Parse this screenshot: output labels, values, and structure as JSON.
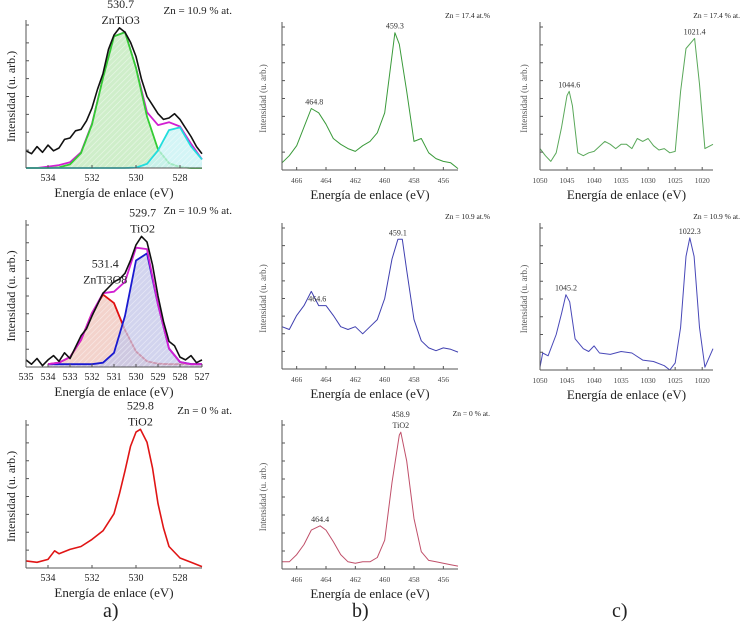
{
  "figure": {
    "panel_letters": [
      "a)",
      "b)",
      "c)"
    ]
  },
  "chart_data": [
    {
      "id": "a1",
      "type": "line",
      "column": "a",
      "annotation": "Zn = 10.9 % at.",
      "xlabel": "Energía de enlace (eV)",
      "ylabel": "Intensidad (u. arb.)",
      "xlim": [
        535,
        527
      ],
      "ylim": [
        0,
        1
      ],
      "xticks": [
        534,
        532,
        530,
        528
      ],
      "grid": false,
      "peak_labels": [
        {
          "lines": [
            "530.7",
            "ZnTiO3"
          ],
          "x": 530.7
        }
      ],
      "series": [
        {
          "role": "envelope",
          "color": "#d21fd2",
          "x": [
            535,
            534.5,
            534,
            533.5,
            533,
            532.5,
            532,
            531.5,
            531,
            530.5,
            530,
            529.5,
            529,
            528.5,
            528,
            527.5,
            527
          ],
          "y": [
            0,
            0,
            0.01,
            0.02,
            0.04,
            0.11,
            0.31,
            0.63,
            0.92,
            0.95,
            0.7,
            0.39,
            0.3,
            0.32,
            0.29,
            0.17,
            0.06
          ]
        },
        {
          "role": "component",
          "name": "ZnTiO3",
          "color": "#33cc33",
          "fill": "#bfe8b8",
          "x": [
            535,
            534.5,
            534,
            533.5,
            533,
            532.5,
            532,
            531.5,
            531,
            530.5,
            530,
            529.5,
            529,
            528.5,
            528,
            527.5,
            527
          ],
          "y": [
            0,
            0,
            0,
            0.004,
            0.025,
            0.104,
            0.305,
            0.63,
            0.92,
            0.95,
            0.7,
            0.36,
            0.13,
            0.034,
            0.006,
            0,
            0
          ]
        },
        {
          "role": "component",
          "color": "#22dddd",
          "fill": "#c6f1f3",
          "x": [
            535,
            534.5,
            534,
            533.5,
            533,
            532.5,
            532,
            531.5,
            531,
            530.5,
            530,
            529.5,
            529,
            528.5,
            528,
            527.5,
            527
          ],
          "y": [
            0,
            0,
            0,
            0,
            0,
            0,
            0,
            0,
            0,
            0,
            0.003,
            0.029,
            0.123,
            0.265,
            0.284,
            0.152,
            0.06
          ]
        },
        {
          "role": "data",
          "color": "#111111",
          "x": [
            535,
            534.75,
            534.5,
            534.25,
            534,
            533.75,
            533.5,
            533.25,
            533,
            532.75,
            532.5,
            532.25,
            532,
            531.75,
            531.5,
            531.25,
            531,
            530.75,
            530.5,
            530.25,
            530,
            529.75,
            529.5,
            529.25,
            529,
            528.75,
            528.5,
            528.25,
            528,
            527.75,
            527.5,
            527.25,
            527
          ],
          "y": [
            0.12,
            0.1,
            0.15,
            0.11,
            0.16,
            0.12,
            0.14,
            0.2,
            0.21,
            0.26,
            0.27,
            0.33,
            0.42,
            0.55,
            0.66,
            0.83,
            0.93,
            0.98,
            0.95,
            0.88,
            0.78,
            0.62,
            0.5,
            0.44,
            0.38,
            0.34,
            0.35,
            0.38,
            0.34,
            0.28,
            0.22,
            0.15,
            0.1
          ]
        }
      ]
    },
    {
      "id": "a2",
      "type": "line",
      "column": "a",
      "annotation": "Zn = 10.9 % at.",
      "xlabel": "Energía de enlace (eV)",
      "ylabel": "Intensidad (u. arb.)",
      "xlim": [
        535,
        527
      ],
      "ylim": [
        0,
        1
      ],
      "xticks": [
        535,
        534,
        533,
        532,
        531,
        530,
        529,
        528,
        527
      ],
      "grid": false,
      "peak_labels": [
        {
          "lines": [
            "531.4",
            "ZnTi3O8"
          ],
          "x": 531.4
        },
        {
          "lines": [
            "529.7",
            "TiO2"
          ],
          "x": 529.7
        }
      ],
      "series": [
        {
          "role": "component",
          "name": "ZnTi3O8",
          "color": "#e01010",
          "fill": "#efc4bb",
          "x": [
            534,
            533.5,
            533,
            532.5,
            532,
            531.5,
            531,
            530.5,
            530,
            529.5,
            529,
            528.5,
            528,
            527.5,
            527
          ],
          "y": [
            0.02,
            0.03,
            0.07,
            0.19,
            0.38,
            0.51,
            0.45,
            0.26,
            0.11,
            0.04,
            0.023,
            0.02,
            0.02,
            0.02,
            0.02
          ]
        },
        {
          "role": "component",
          "name": "TiO2",
          "color": "#1a1ad0",
          "fill": "#c3c6e8",
          "x": [
            534,
            533.5,
            533,
            532.5,
            532,
            531.5,
            531,
            530.5,
            530,
            529.5,
            529,
            528.5,
            528,
            527.5,
            527
          ],
          "y": [
            0.02,
            0.02,
            0.02,
            0.02,
            0.02,
            0.03,
            0.1,
            0.36,
            0.75,
            0.8,
            0.44,
            0.13,
            0.035,
            0.021,
            0.02
          ]
        },
        {
          "role": "envelope",
          "color": "#d21fd2",
          "x": [
            534,
            533.5,
            533,
            532.5,
            532,
            531.5,
            531,
            530.5,
            530,
            529.5,
            529,
            528.5,
            528,
            527.5,
            527
          ],
          "y": [
            0.02,
            0.03,
            0.07,
            0.19,
            0.38,
            0.52,
            0.53,
            0.6,
            0.84,
            0.83,
            0.44,
            0.13,
            0.035,
            0.02,
            0.02
          ]
        },
        {
          "role": "data",
          "color": "#111111",
          "x": [
            535,
            534.75,
            534.5,
            534.25,
            534,
            533.75,
            533.5,
            533.25,
            533,
            532.75,
            532.5,
            532.25,
            532,
            531.75,
            531.5,
            531.25,
            531,
            530.75,
            530.5,
            530.25,
            530,
            529.75,
            529.5,
            529.25,
            529,
            528.75,
            528.5,
            528.25,
            528,
            527.75,
            527.5,
            527.25,
            527
          ],
          "y": [
            0.05,
            0.02,
            0.06,
            0.01,
            0.05,
            0.08,
            0.04,
            0.1,
            0.06,
            0.14,
            0.22,
            0.27,
            0.36,
            0.44,
            0.52,
            0.56,
            0.6,
            0.62,
            0.66,
            0.75,
            0.86,
            0.92,
            0.88,
            0.72,
            0.5,
            0.32,
            0.18,
            0.15,
            0.07,
            0.05,
            0.08,
            0.03,
            0.05
          ]
        }
      ]
    },
    {
      "id": "a3",
      "type": "line",
      "column": "a",
      "annotation": "Zn = 0 % at.",
      "xlabel": "Energía de enlace (eV)",
      "ylabel": "Intensidad (u. arb.)",
      "xlim": [
        535,
        527
      ],
      "ylim": [
        0,
        1
      ],
      "xticks": [
        534,
        532,
        530,
        528
      ],
      "grid": false,
      "peak_labels": [
        {
          "lines": [
            "529.8",
            "TiO2"
          ],
          "x": 529.8
        }
      ],
      "series": [
        {
          "role": "data",
          "color": "#e01515",
          "x": [
            535,
            534.5,
            534,
            533.7,
            533.5,
            533,
            532.5,
            532,
            531.5,
            531,
            530.75,
            530.5,
            530.25,
            530,
            529.8,
            529.5,
            529.25,
            529,
            528.75,
            528.5,
            528,
            527.5,
            527
          ],
          "y": [
            0.05,
            0.04,
            0.06,
            0.12,
            0.1,
            0.13,
            0.15,
            0.2,
            0.26,
            0.38,
            0.52,
            0.68,
            0.85,
            0.95,
            0.97,
            0.88,
            0.7,
            0.45,
            0.28,
            0.15,
            0.07,
            0.04,
            0.01
          ]
        }
      ]
    },
    {
      "id": "b1",
      "type": "line",
      "column": "b",
      "annotation": "Zn = 17.4 at.%",
      "xlabel": "Energía de enlace (eV)",
      "ylabel": "Intensidad (u. arb.)",
      "xlim": [
        467,
        455
      ],
      "ylim": [
        0,
        1
      ],
      "xticks": [
        466,
        464,
        462,
        460,
        458,
        456
      ],
      "grid": false,
      "peak_labels": [
        {
          "lines": [
            "464.8"
          ],
          "x": 464.8
        },
        {
          "lines": [
            "459.3"
          ],
          "x": 459.3
        }
      ],
      "series": [
        {
          "role": "data",
          "color": "#3a9a3a",
          "x": [
            467,
            466.5,
            466,
            465.5,
            465,
            464.5,
            464,
            463.5,
            463,
            462.5,
            462,
            461.5,
            461,
            460.5,
            460,
            459.5,
            459.3,
            459,
            458.5,
            458,
            457.5,
            457,
            456.5,
            456,
            455.5,
            455
          ],
          "y": [
            0.05,
            0.1,
            0.17,
            0.3,
            0.43,
            0.4,
            0.32,
            0.22,
            0.18,
            0.15,
            0.13,
            0.17,
            0.2,
            0.26,
            0.4,
            0.8,
            0.96,
            0.88,
            0.55,
            0.2,
            0.22,
            0.12,
            0.08,
            0.06,
            0.05,
            0.01
          ]
        }
      ]
    },
    {
      "id": "b2",
      "type": "line",
      "column": "b",
      "annotation": "Zn = 10.9 at.%",
      "xlabel": "Energía de enlace (eV)",
      "ylabel": "Intensidad (u. arb.)",
      "xlim": [
        467,
        455
      ],
      "ylim": [
        0,
        1
      ],
      "xticks": [
        466,
        464,
        462,
        460,
        458,
        456
      ],
      "grid": false,
      "peak_labels": [
        {
          "lines": [
            "464.6"
          ],
          "x": 464.6
        },
        {
          "lines": [
            "459.1"
          ],
          "x": 459.1
        }
      ],
      "series": [
        {
          "role": "data",
          "color": "#4040b0",
          "x": [
            467,
            466.5,
            466,
            465.5,
            465,
            464.5,
            464,
            463.5,
            463,
            462.5,
            462,
            461.5,
            461,
            460.5,
            460,
            459.5,
            459.1,
            458.8,
            458.5,
            458,
            457.5,
            457,
            456.5,
            456,
            455.5,
            455
          ],
          "y": [
            0.3,
            0.28,
            0.38,
            0.45,
            0.55,
            0.45,
            0.45,
            0.38,
            0.3,
            0.28,
            0.3,
            0.25,
            0.3,
            0.35,
            0.5,
            0.78,
            0.92,
            0.92,
            0.7,
            0.35,
            0.2,
            0.15,
            0.13,
            0.15,
            0.14,
            0.12
          ]
        }
      ]
    },
    {
      "id": "b3",
      "type": "line",
      "column": "b",
      "annotation": "Zn = 0 % at.",
      "xlabel": "Energía de enlace (eV)",
      "ylabel": "Intensidad (u. arb.)",
      "xlim": [
        467,
        455
      ],
      "ylim": [
        0,
        1
      ],
      "xticks": [
        466,
        464,
        462,
        460,
        458,
        456
      ],
      "grid": false,
      "peak_labels": [
        {
          "lines": [
            "464.4"
          ],
          "x": 464.4
        },
        {
          "lines": [
            "458.9",
            "TiO2"
          ],
          "x": 458.9
        }
      ],
      "series": [
        {
          "role": "data",
          "color": "#c0506a",
          "x": [
            467,
            466.5,
            466,
            465.5,
            465,
            464.4,
            464,
            463.5,
            463,
            462.5,
            462,
            461.5,
            461,
            460.5,
            460,
            459.5,
            459,
            458.9,
            458.5,
            458,
            457.5,
            457,
            456.5,
            456,
            455.5,
            455
          ],
          "y": [
            0.05,
            0.05,
            0.1,
            0.17,
            0.27,
            0.3,
            0.27,
            0.19,
            0.1,
            0.05,
            0.04,
            0.05,
            0.05,
            0.08,
            0.2,
            0.6,
            0.93,
            0.95,
            0.75,
            0.35,
            0.12,
            0.06,
            0.05,
            0.04,
            0.03,
            0.02
          ]
        }
      ]
    },
    {
      "id": "c1",
      "type": "line",
      "column": "c",
      "annotation": "Zn = 17.4 % at.",
      "xlabel": "Energía de enlace (eV)",
      "ylabel": "Intensidad (u. arb.)",
      "xlim": [
        1050,
        1018
      ],
      "ylim": [
        0,
        1
      ],
      "xticks": [
        1050,
        1045,
        1040,
        1035,
        1030,
        1025,
        1020
      ],
      "grid": false,
      "peak_labels": [
        {
          "lines": [
            "1044.6"
          ],
          "x": 1044.6
        },
        {
          "lines": [
            "1021.4"
          ],
          "x": 1021.4
        }
      ],
      "series": [
        {
          "role": "data",
          "color": "#5aa85a",
          "x": [
            1050,
            1049,
            1048,
            1047,
            1046,
            1045,
            1044.6,
            1044,
            1043,
            1042,
            1041,
            1040,
            1038,
            1037,
            1036,
            1035,
            1034,
            1033,
            1032,
            1031,
            1030,
            1029,
            1028,
            1027,
            1026,
            1025,
            1024,
            1023,
            1021.4,
            1020.5,
            1019.5,
            1018
          ],
          "y": [
            0.15,
            0.1,
            0.06,
            0.12,
            0.3,
            0.52,
            0.55,
            0.45,
            0.12,
            0.1,
            0.12,
            0.13,
            0.2,
            0.18,
            0.15,
            0.18,
            0.18,
            0.15,
            0.22,
            0.2,
            0.22,
            0.17,
            0.14,
            0.15,
            0.12,
            0.13,
            0.55,
            0.85,
            0.92,
            0.6,
            0.15,
            0.18
          ]
        }
      ]
    },
    {
      "id": "c2",
      "type": "line",
      "column": "c",
      "annotation": "Zn = 10.9 % at.",
      "xlabel": "Energía de enlace (eV)",
      "ylabel": "Intensidad (u. arb.)",
      "xlim": [
        1050,
        1018
      ],
      "ylim": [
        0,
        1
      ],
      "xticks": [
        1050,
        1045,
        1040,
        1035,
        1030,
        1025,
        1020
      ],
      "grid": false,
      "peak_labels": [
        {
          "lines": [
            "1045.2"
          ],
          "x": 1045.2
        },
        {
          "lines": [
            "1022.3"
          ],
          "x": 1022.3
        }
      ],
      "series": [
        {
          "role": "data",
          "color": "#4848b8",
          "x": [
            1050,
            1049.5,
            1048.5,
            1047,
            1046,
            1045.2,
            1044.5,
            1043.5,
            1042,
            1041,
            1040,
            1039,
            1037,
            1035,
            1033,
            1031,
            1029,
            1027,
            1026,
            1025,
            1024,
            1023,
            1022.3,
            1021.5,
            1020.5,
            1019.5,
            1018
          ],
          "y": [
            0.02,
            0.12,
            0.1,
            0.25,
            0.4,
            0.53,
            0.48,
            0.22,
            0.15,
            0.13,
            0.17,
            0.12,
            0.11,
            0.13,
            0.12,
            0.07,
            0.06,
            0.03,
            0.0,
            0.05,
            0.3,
            0.8,
            0.93,
            0.8,
            0.3,
            0.02,
            0.15
          ]
        }
      ]
    }
  ]
}
